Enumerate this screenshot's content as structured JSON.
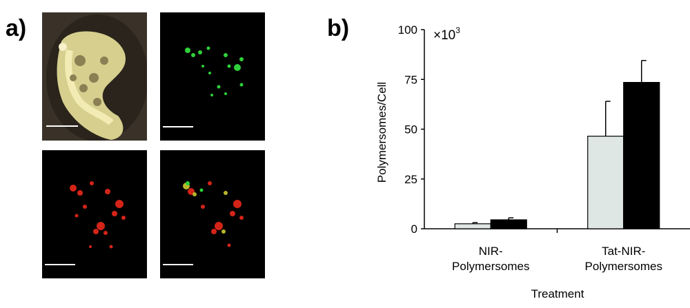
{
  "panels": {
    "a_label": "a)",
    "b_label": "b)"
  },
  "micrographs": [
    {
      "name": "micrograph-brightfield-cell",
      "channel": "brightfield",
      "color": "#e9e3a2"
    },
    {
      "name": "micrograph-green-channel",
      "channel": "green",
      "color": "#2fd13a"
    },
    {
      "name": "micrograph-red-channel",
      "channel": "red",
      "color": "#d42418"
    },
    {
      "name": "micrograph-merged",
      "channel": "merge",
      "color": "#c9a030"
    }
  ],
  "chart_data": {
    "type": "bar",
    "multiplier_label": "×10",
    "multiplier_exp": "3",
    "ylabel": "Polymersomes/Cell",
    "xlabel": "Treatment",
    "ylim": [
      0,
      100
    ],
    "yticks": [
      "0",
      "25",
      "50",
      "75",
      "100"
    ],
    "categories": [
      [
        "NIR-",
        "Polymersomes"
      ],
      [
        "Tat-NIR-",
        "Polymersomes"
      ]
    ],
    "series": [
      {
        "values": [
          2.5,
          46.5
        ],
        "errors": [
          0.6,
          17.5
        ],
        "color": "#dfe7e5"
      },
      {
        "values": [
          4.5,
          73.5
        ],
        "errors": [
          1.0,
          11.0
        ],
        "color": "#000000"
      }
    ],
    "grid": false,
    "legend": "none"
  }
}
